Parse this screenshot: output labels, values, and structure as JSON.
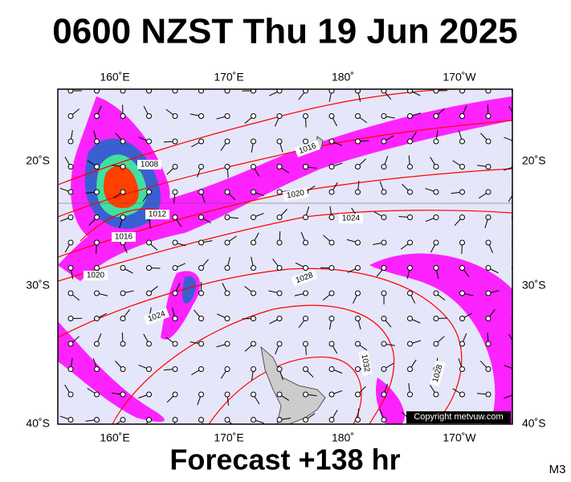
{
  "header": {
    "title": "0600 NZST Thu 19 Jun 2025"
  },
  "map": {
    "top_labels": [
      "160˚E",
      "170˚E",
      "180˚",
      "170˚W"
    ],
    "bottom_labels": [
      "160˚E",
      "170˚E",
      "180˚",
      "170˚W"
    ],
    "left_labels": [
      "20˚S",
      "30˚S",
      "40˚S"
    ],
    "right_labels": [
      "20˚S",
      "30˚S",
      "40˚S"
    ],
    "isobar_labels": [
      "1008",
      "1012",
      "1016",
      "1016",
      "1020",
      "1024",
      "1028",
      "1020",
      "1024",
      "1032",
      "1028"
    ],
    "copyright": "Copyright metvuw.com"
  },
  "footer": {
    "forecast": "Forecast +138 hr",
    "model": "M3"
  }
}
